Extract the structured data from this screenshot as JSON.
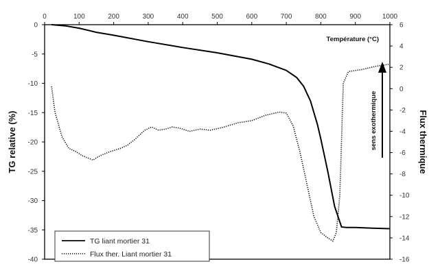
{
  "chart_data": {
    "type": "line",
    "title": "",
    "xlabel": "Température (°C)",
    "ylabel": "TG relative (%)",
    "y2label": "Flux thermique",
    "annotation": "sens exothermique",
    "xlim": [
      0,
      1000
    ],
    "ylim": [
      -40,
      0
    ],
    "y2lim": [
      -16,
      6
    ],
    "x_ticks": [
      0,
      100,
      200,
      300,
      400,
      500,
      600,
      700,
      800,
      900,
      1000
    ],
    "y_ticks": [
      0,
      -5,
      -10,
      -15,
      -20,
      -25,
      -30,
      -35,
      -40
    ],
    "y2_ticks": [
      6,
      4,
      2,
      0,
      -2,
      -4,
      -6,
      -8,
      -10,
      -12,
      -14,
      -16
    ],
    "legend_position": "bottom-left",
    "grid": false,
    "series": [
      {
        "name": "TG liant mortier 31",
        "axis": "left",
        "style": "solid",
        "color": "#000000",
        "x": [
          20,
          60,
          100,
          150,
          200,
          300,
          400,
          500,
          600,
          650,
          700,
          730,
          750,
          770,
          790,
          800,
          820,
          840,
          860,
          875,
          900,
          950,
          1000
        ],
        "y": [
          0,
          -0.2,
          -0.6,
          -1.3,
          -1.8,
          -2.9,
          -3.9,
          -4.8,
          -5.9,
          -6.7,
          -7.8,
          -9.0,
          -10.5,
          -13.0,
          -17.0,
          -19.5,
          -25.0,
          -31.0,
          -34.5,
          -34.6,
          -34.6,
          -34.7,
          -34.8
        ]
      },
      {
        "name": "Flux ther. Liant mortier 31",
        "axis": "right",
        "style": "dotted",
        "color": "#000000",
        "x": [
          20,
          30,
          50,
          70,
          90,
          110,
          140,
          160,
          190,
          220,
          240,
          260,
          290,
          310,
          330,
          350,
          370,
          390,
          420,
          450,
          480,
          520,
          560,
          600,
          640,
          680,
          700,
          720,
          740,
          760,
          780,
          800,
          820,
          835,
          845,
          855,
          865,
          880,
          920,
          960,
          1000
        ],
        "y": [
          0.2,
          -2.2,
          -4.5,
          -5.6,
          -5.9,
          -6.3,
          -6.7,
          -6.3,
          -5.9,
          -5.6,
          -5.3,
          -4.8,
          -3.9,
          -3.6,
          -3.9,
          -3.8,
          -3.6,
          -3.7,
          -4.0,
          -3.8,
          -3.9,
          -3.6,
          -3.2,
          -3.0,
          -2.5,
          -2.2,
          -2.3,
          -3.5,
          -6.0,
          -9.0,
          -12.0,
          -13.5,
          -14.0,
          -14.3,
          -13.5,
          -10.0,
          0.5,
          1.6,
          1.8,
          2.1,
          2.3
        ]
      }
    ]
  }
}
